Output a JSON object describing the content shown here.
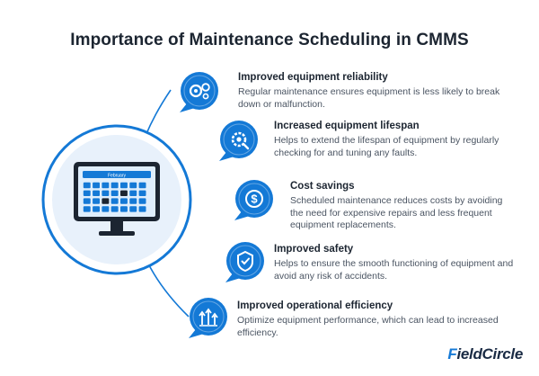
{
  "title": "Importance of Maintenance Scheduling in CMMS",
  "colors": {
    "accent": "#1479d6",
    "dark": "#1c2531",
    "muted": "#4a5462",
    "light_blue": "#e8f1fb"
  },
  "items": [
    {
      "title": "Improved equipment reliability",
      "description": "Regular maintenance ensures equipment is less likely to break down or malfunction.",
      "icon": "gears-icon"
    },
    {
      "title": "Increased equipment lifespan",
      "description": "Helps to extend the lifespan of equipment by regularly checking for and tuning any faults.",
      "icon": "gear-wrench-icon"
    },
    {
      "title": "Cost savings",
      "description": "Scheduled maintenance reduces costs by avoiding the need for expensive repairs and less frequent equipment replacements.",
      "icon": "dollar-icon"
    },
    {
      "title": "Improved safety",
      "description": "Helps to ensure the smooth functioning of equipment and avoid any risk of accidents.",
      "icon": "shield-check-icon"
    },
    {
      "title": "Improved operational efficiency",
      "description": "Optimize equipment performance, which can lead to increased efficiency.",
      "icon": "efficiency-arrows-icon"
    }
  ],
  "monitor": {
    "header_label": "February"
  },
  "brand": {
    "logo_prefix": "F",
    "logo_rest": "ieldCircle"
  }
}
